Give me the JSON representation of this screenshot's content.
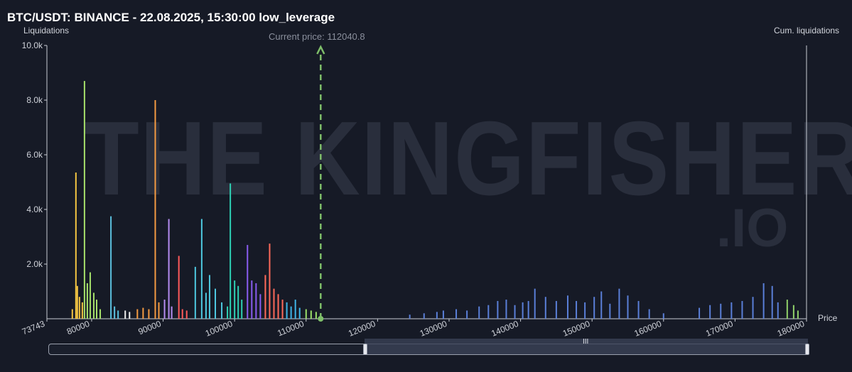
{
  "header": {
    "title": "BTC/USDT: BINANCE - 22.08.2025, 15:30:00 low_leverage"
  },
  "watermark": {
    "main": "THE KINGFISHER",
    "suffix": ".IO"
  },
  "chart_data": {
    "type": "bar",
    "title": "BTC/USDT: BINANCE - 22.08.2025, 15:30:00 low_leverage",
    "ylabel": "Liquidations",
    "y2label": "Cum. liquidations",
    "xlabel": "Price",
    "ylim": [
      0,
      10000
    ],
    "xlim": [
      73743,
      180000
    ],
    "y_ticks": [
      "2.0k",
      "4.0k",
      "6.0k",
      "8.0k",
      "10.0k"
    ],
    "y_tick_values": [
      2000,
      4000,
      6000,
      8000,
      10000
    ],
    "x_ticks": [
      "73743",
      "80000",
      "90000",
      "100000",
      "110000",
      "120000",
      "130000",
      "140000",
      "150000",
      "160000",
      "170000",
      "180000"
    ],
    "x_tick_values": [
      73743,
      80000,
      90000,
      100000,
      110000,
      120000,
      130000,
      140000,
      150000,
      160000,
      170000,
      180000
    ],
    "current_price": 112040.8,
    "current_price_label": "Current price: 112040.8",
    "grid": false,
    "series": [
      {
        "color": "#f4c542",
        "points": [
          [
            77300,
            350
          ],
          [
            77800,
            5350
          ],
          [
            78000,
            1200
          ],
          [
            78300,
            800
          ],
          [
            78700,
            600
          ]
        ]
      },
      {
        "color": "#a6e06a",
        "points": [
          [
            79000,
            8700
          ],
          [
            79400,
            1300
          ],
          [
            79800,
            1700
          ],
          [
            80300,
            950
          ],
          [
            80700,
            700
          ],
          [
            81200,
            350
          ]
        ]
      },
      {
        "color": "#5bc0de",
        "points": [
          [
            82700,
            3750
          ],
          [
            83200,
            450
          ],
          [
            83700,
            300
          ]
        ]
      },
      {
        "color": "#f0f0f0",
        "points": [
          [
            84700,
            300
          ],
          [
            85300,
            250
          ]
        ]
      },
      {
        "color": "#f59b42",
        "points": [
          [
            86400,
            350
          ],
          [
            87200,
            400
          ],
          [
            88000,
            350
          ],
          [
            88900,
            8000
          ],
          [
            89400,
            600
          ]
        ]
      },
      {
        "color": "#b48cf0",
        "points": [
          [
            90200,
            700
          ],
          [
            90800,
            3650
          ],
          [
            91200,
            450
          ]
        ]
      },
      {
        "color": "#ff5a5a",
        "points": [
          [
            92200,
            2300
          ],
          [
            92700,
            350
          ],
          [
            93300,
            300
          ]
        ]
      },
      {
        "color": "#4ec9e0",
        "points": [
          [
            94500,
            1900
          ],
          [
            95400,
            3650
          ],
          [
            96000,
            950
          ],
          [
            96500,
            1600
          ],
          [
            97300,
            1100
          ],
          [
            98200,
            600
          ]
        ]
      },
      {
        "color": "#2ed1b4",
        "points": [
          [
            99000,
            450
          ],
          [
            99400,
            4950
          ],
          [
            100000,
            1400
          ],
          [
            100500,
            1200
          ],
          [
            101000,
            700
          ]
        ]
      },
      {
        "color": "#8a5cf0",
        "points": [
          [
            101800,
            2700
          ],
          [
            102400,
            1400
          ],
          [
            103000,
            1300
          ],
          [
            103600,
            900
          ]
        ]
      },
      {
        "color": "#ff6a5a",
        "points": [
          [
            104300,
            1600
          ],
          [
            104900,
            2750
          ],
          [
            105500,
            1100
          ],
          [
            106100,
            900
          ],
          [
            106700,
            700
          ]
        ]
      },
      {
        "color": "#3fb6e8",
        "points": [
          [
            107300,
            600
          ],
          [
            107900,
            450
          ],
          [
            108500,
            700
          ],
          [
            109100,
            400
          ]
        ]
      },
      {
        "color": "#9be06a",
        "points": [
          [
            110000,
            350
          ],
          [
            110700,
            300
          ],
          [
            111400,
            250
          ]
        ]
      },
      {
        "color": "#5a7fd8",
        "points": [
          [
            124500,
            150
          ],
          [
            126500,
            200
          ],
          [
            128300,
            250
          ],
          [
            129200,
            300
          ],
          [
            131000,
            350
          ],
          [
            132500,
            300
          ],
          [
            134200,
            450
          ],
          [
            135500,
            500
          ],
          [
            136800,
            650
          ],
          [
            138000,
            700
          ],
          [
            139200,
            500
          ],
          [
            140300,
            600
          ],
          [
            141100,
            650
          ],
          [
            142000,
            1100
          ],
          [
            143500,
            800
          ],
          [
            145000,
            650
          ],
          [
            146600,
            850
          ],
          [
            147800,
            650
          ],
          [
            149000,
            600
          ],
          [
            150300,
            800
          ],
          [
            151300,
            1000
          ],
          [
            152500,
            550
          ],
          [
            153800,
            1100
          ],
          [
            155000,
            850
          ],
          [
            156500,
            650
          ],
          [
            158000,
            350
          ],
          [
            160000,
            200
          ],
          [
            165000,
            400
          ],
          [
            166500,
            500
          ],
          [
            168000,
            550
          ],
          [
            169500,
            600
          ],
          [
            171000,
            650
          ],
          [
            172500,
            800
          ],
          [
            174000,
            1300
          ],
          [
            175200,
            1200
          ],
          [
            176000,
            600
          ]
        ]
      },
      {
        "color": "#8fd06a",
        "points": [
          [
            177300,
            700
          ],
          [
            178200,
            500
          ],
          [
            178800,
            300
          ]
        ]
      }
    ]
  },
  "slider": {
    "grip": "III"
  }
}
